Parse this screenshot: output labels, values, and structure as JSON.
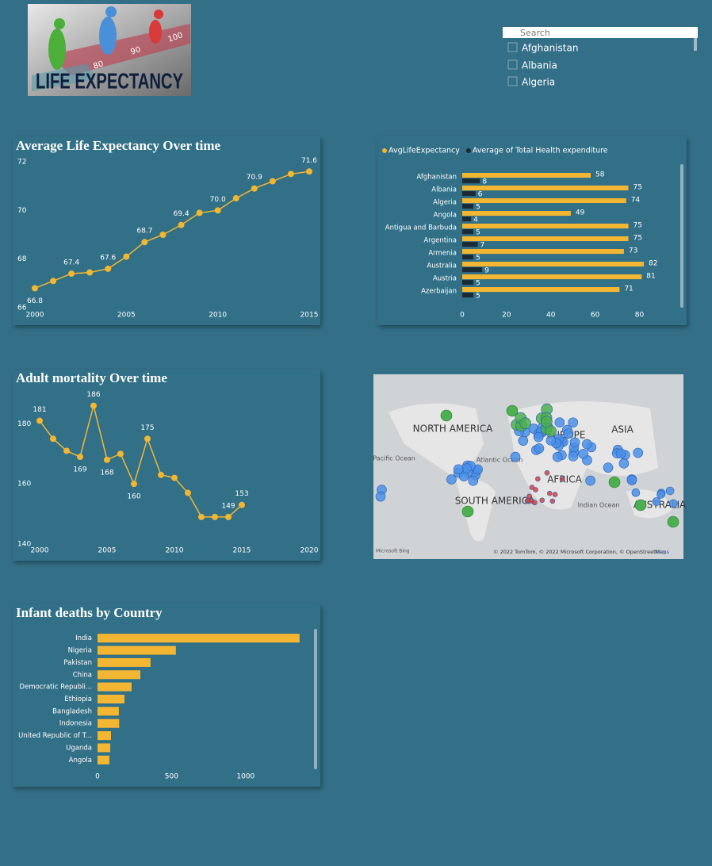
{
  "logo": {
    "title": "LIFE EXPECTANCY",
    "numbers": [
      "80",
      "90",
      "100"
    ]
  },
  "slicer": {
    "placeholder": "Search",
    "items": [
      "Afghanistan",
      "Albania",
      "Algeria"
    ]
  },
  "map": {
    "labels": [
      "NORTH AMERICA",
      "EUROPE",
      "ASIA",
      "SOUTH AMERICA",
      "AFRICA",
      "AUSTRALIA"
    ],
    "oceans": [
      "Pacific Ocean",
      "Atlantic Ocean",
      "Indian Ocean"
    ],
    "brand": "Microsoft Bing",
    "attribution": "© 2022 TomTom, © 2022 Microsoft Corporation, © OpenStreetMap",
    "terms": "Terms"
  },
  "chart_data": [
    {
      "type": "line",
      "title": "Average Life Expectancy Over time",
      "x": [
        2000,
        2001,
        2002,
        2003,
        2004,
        2005,
        2006,
        2007,
        2008,
        2009,
        2010,
        2011,
        2012,
        2013,
        2014,
        2015
      ],
      "values": [
        66.8,
        67.1,
        67.4,
        67.45,
        67.6,
        68.1,
        68.7,
        69.0,
        69.4,
        69.9,
        70.0,
        70.5,
        70.9,
        71.2,
        71.5,
        71.6
      ],
      "value_labels": [
        "66.8",
        null,
        "67.4",
        null,
        "67.6",
        null,
        "68.7",
        null,
        "69.4",
        null,
        "70.0",
        null,
        "70.9",
        null,
        null,
        "71.6"
      ],
      "color": "#f2b632",
      "xlim": [
        2000,
        2015
      ],
      "xticks": [
        2000,
        2005,
        2010,
        2015
      ],
      "ylim": [
        66,
        72
      ],
      "yticks": [
        66,
        68,
        70,
        72
      ],
      "grid": false
    },
    {
      "type": "barh",
      "categories": [
        "Afghanistan",
        "Albania",
        "Algeria",
        "Angola",
        "Antigua and Barbuda",
        "Argentina",
        "Armenia",
        "Australia",
        "Austria",
        "Azerbaijan"
      ],
      "series": [
        {
          "name": "AvgLifeExpectancy",
          "color": "#f2b632",
          "values": [
            58,
            75,
            74,
            49,
            75,
            75,
            73,
            82,
            81,
            71
          ]
        },
        {
          "name": "Average of Total Health expenditure",
          "color": "#1b2b36",
          "values": [
            8,
            6,
            5,
            4,
            5,
            7,
            5,
            9,
            5,
            5
          ]
        }
      ],
      "xlim": [
        0,
        92
      ],
      "xticks": [
        0,
        20,
        40,
        60,
        80
      ],
      "legend": "top-left",
      "grid": false
    },
    {
      "type": "line",
      "title": "Adult mortality Over time",
      "x": [
        2000,
        2001,
        2002,
        2003,
        2004,
        2005,
        2006,
        2007,
        2008,
        2009,
        2010,
        2011,
        2012,
        2013,
        2014,
        2015
      ],
      "values": [
        181,
        175,
        171,
        169,
        186,
        168,
        170,
        160,
        175,
        163,
        162,
        157,
        149,
        149,
        149,
        153
      ],
      "value_labels": [
        "181",
        null,
        null,
        "169",
        "186",
        "168",
        null,
        "160",
        "175",
        null,
        null,
        null,
        null,
        null,
        "149",
        "153"
      ],
      "color": "#f2b632",
      "xlim": [
        2000,
        2020
      ],
      "xticks": [
        2000,
        2005,
        2010,
        2015,
        2020
      ],
      "ylim": [
        140,
        188
      ],
      "yticks": [
        140,
        160,
        180
      ],
      "grid": false
    },
    {
      "type": "barh",
      "title": "Infant deaths by Country",
      "categories": [
        "India",
        "Nigeria",
        "Pakistan",
        "China",
        "Democratic Republi...",
        "Ethiopia",
        "Bangladesh",
        "Indonesia",
        "United Republic of T...",
        "Uganda",
        "Angola"
      ],
      "values": [
        1364,
        529,
        358,
        289,
        230,
        182,
        144,
        146,
        91,
        86,
        80
      ],
      "color": "#f2b632",
      "xlim": [
        0,
        1440
      ],
      "xticks": [
        0,
        500,
        1000
      ],
      "grid": false
    }
  ]
}
